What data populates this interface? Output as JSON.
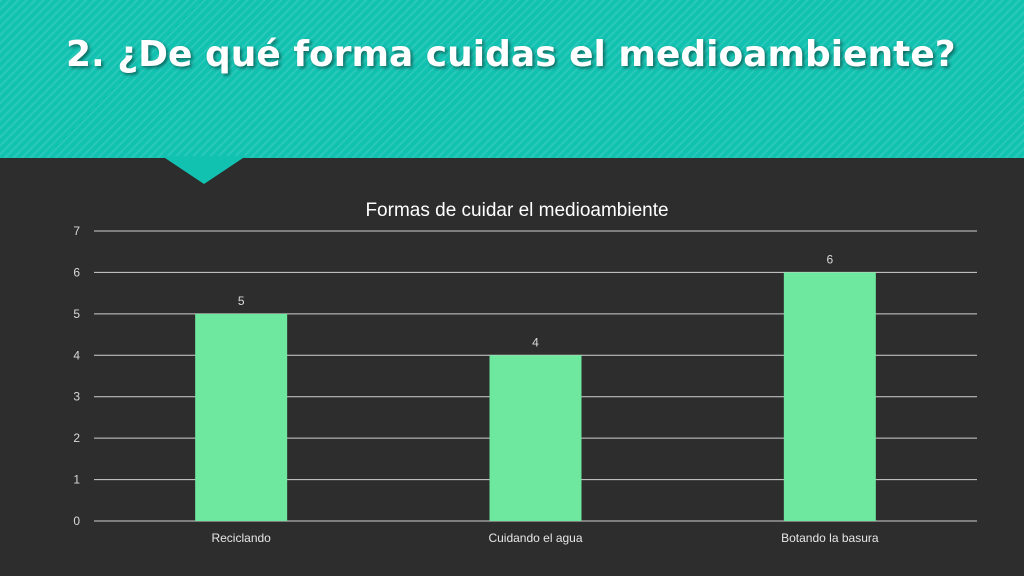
{
  "slide": {
    "title": "2. ¿De qué forma cuidas el medioambiente?",
    "header_color": "#12c2b1",
    "background_color": "#2d2d2d"
  },
  "chart_data": {
    "type": "bar",
    "title": "Formas de cuidar el medioambiente",
    "categories": [
      "Reciclando",
      "Cuidando el agua",
      "Botando la basura"
    ],
    "values": [
      5,
      4,
      6
    ],
    "ylim": [
      0,
      7
    ],
    "yticks": [
      0,
      1,
      2,
      3,
      4,
      5,
      6,
      7
    ],
    "xlabel": "",
    "ylabel": "",
    "bar_color": "#6ee89e",
    "grid": true,
    "data_labels": true,
    "legend": "none"
  }
}
